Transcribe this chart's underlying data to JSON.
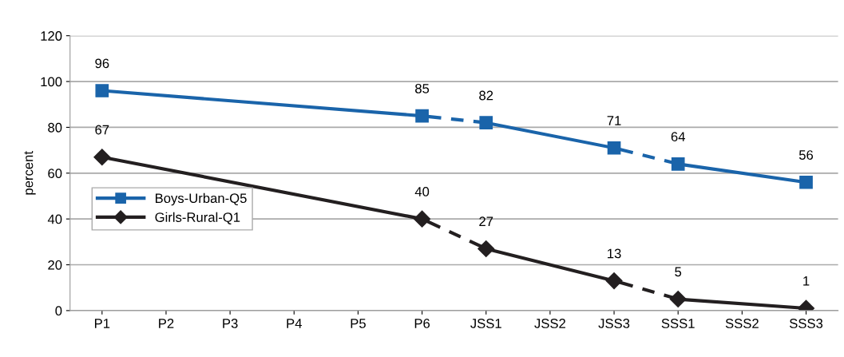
{
  "chart_data": {
    "type": "line",
    "ylabel": "percent",
    "categories": [
      "P1",
      "P2",
      "P3",
      "P4",
      "P5",
      "P6",
      "JSS1",
      "JSS2",
      "JSS3",
      "SSS1",
      "SSS2",
      "SSS3"
    ],
    "series": [
      {
        "name": "Boys-Urban-Q5",
        "color": "#1a64aa",
        "marker": "square",
        "line_style": [
          "solid",
          "dashed",
          "solid",
          "dashed",
          "solid"
        ],
        "values": [
          96,
          null,
          null,
          null,
          null,
          85,
          82,
          null,
          71,
          64,
          null,
          56
        ]
      },
      {
        "name": "Girls-Rural-Q1",
        "color": "#231f20",
        "marker": "diamond",
        "line_style": [
          "solid",
          "dashed",
          "solid",
          "dashed",
          "solid"
        ],
        "values": [
          67,
          null,
          null,
          null,
          null,
          40,
          27,
          null,
          13,
          5,
          null,
          1
        ]
      }
    ],
    "ylim": [
      0,
      120
    ],
    "yticks": [
      0,
      20,
      40,
      60,
      80,
      100,
      120
    ],
    "grid": "y",
    "legend": "left",
    "data_labels": true
  }
}
